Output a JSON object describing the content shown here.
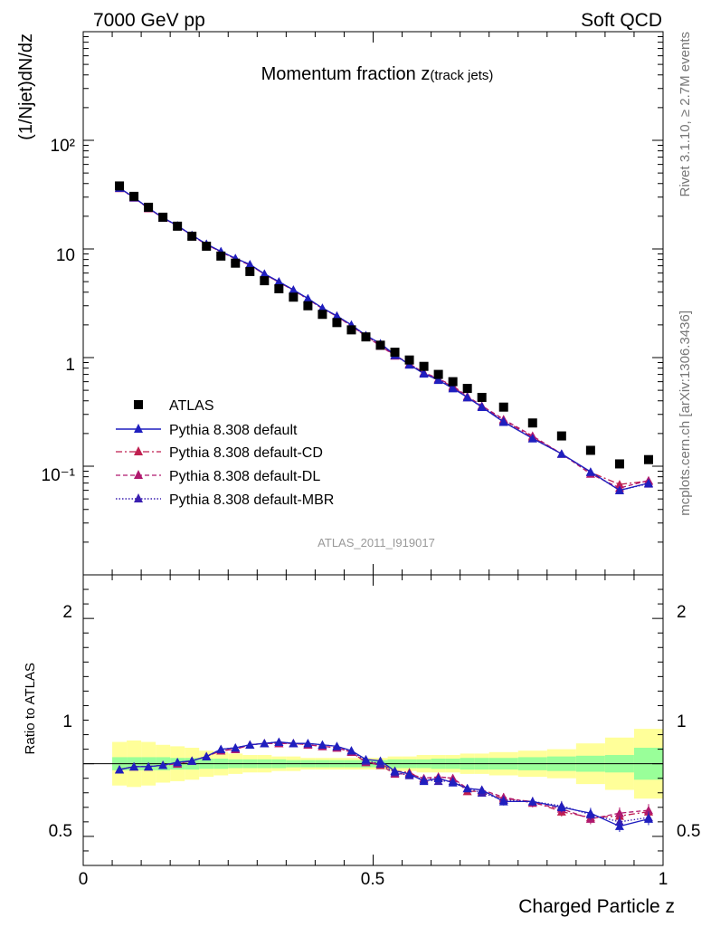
{
  "header": {
    "left": "7000 GeV pp",
    "right": "Soft QCD"
  },
  "side_labels": {
    "rivet": "Rivet 3.1.10, ≥ 2.7M events",
    "mcplots": "mcplots.cern.ch [arXiv:1306.3436]"
  },
  "analysis_tag": "ATLAS_2011_I919017",
  "colors": {
    "atlas": "#000000",
    "default": "#1f1fbf",
    "cd": "#bf1f4f",
    "dl": "#b0186e",
    "mbr": "#3a1fb0",
    "band_inner": "#99ff99",
    "band_outer": "#ffff99"
  },
  "chart_data": {
    "type": "scatter",
    "title_main": "Momentum fraction ",
    "title_var": "z",
    "title_sub": "(track jets)",
    "xlabel": "Charged Particle z",
    "ylabel": "(1/Njet)dN/dz",
    "ratio_ylabel": "Ratio to ATLAS",
    "xlim": [
      0,
      1
    ],
    "ylim": [
      0.01,
      1000
    ],
    "yscale": "log",
    "ratio_ylim": [
      0.3,
      2.3
    ],
    "x_ticks": [
      "0",
      "0.5",
      "1"
    ],
    "y_ticks": [
      "10⁻¹",
      "1",
      "10",
      "10²"
    ],
    "ratio_ticks": [
      "0.5",
      "1",
      "2"
    ],
    "x": [
      0.0625,
      0.0875,
      0.1125,
      0.1375,
      0.1625,
      0.1875,
      0.2125,
      0.2375,
      0.2625,
      0.2875,
      0.3125,
      0.3375,
      0.3625,
      0.3875,
      0.4125,
      0.4375,
      0.4625,
      0.4875,
      0.5125,
      0.5375,
      0.5625,
      0.5875,
      0.6125,
      0.6375,
      0.6625,
      0.6875,
      0.725,
      0.775,
      0.825,
      0.875,
      0.925,
      0.975
    ],
    "x_err": [
      0.0125,
      0.0125,
      0.0125,
      0.0125,
      0.0125,
      0.0125,
      0.0125,
      0.0125,
      0.0125,
      0.0125,
      0.0125,
      0.0125,
      0.0125,
      0.0125,
      0.0125,
      0.0125,
      0.0125,
      0.0125,
      0.0125,
      0.0125,
      0.0125,
      0.0125,
      0.0125,
      0.0125,
      0.0125,
      0.0125,
      0.025,
      0.025,
      0.025,
      0.025,
      0.025,
      0.025
    ],
    "band_inner": [
      0.045,
      0.045,
      0.045,
      0.045,
      0.04,
      0.04,
      0.035,
      0.035,
      0.03,
      0.03,
      0.03,
      0.03,
      0.025,
      0.025,
      0.025,
      0.025,
      0.025,
      0.025,
      0.025,
      0.03,
      0.03,
      0.03,
      0.035,
      0.035,
      0.04,
      0.04,
      0.04,
      0.045,
      0.05,
      0.055,
      0.06,
      0.11
    ],
    "band_outer": [
      0.15,
      0.16,
      0.15,
      0.13,
      0.12,
      0.11,
      0.09,
      0.08,
      0.07,
      0.06,
      0.06,
      0.05,
      0.05,
      0.04,
      0.04,
      0.04,
      0.04,
      0.04,
      0.04,
      0.05,
      0.05,
      0.06,
      0.06,
      0.06,
      0.07,
      0.07,
      0.08,
      0.09,
      0.1,
      0.14,
      0.18,
      0.24
    ],
    "series": [
      {
        "name": "ATLAS",
        "values": [
          38,
          30.5,
          24.2,
          19.6,
          16.2,
          13.1,
          10.6,
          8.6,
          7.4,
          6.2,
          5.1,
          4.3,
          3.6,
          3.0,
          2.5,
          2.1,
          1.8,
          1.55,
          1.3,
          1.12,
          0.95,
          0.83,
          0.7,
          0.6,
          0.52,
          0.43,
          0.35,
          0.25,
          0.19,
          0.14,
          0.105,
          0.115
        ]
      },
      {
        "name": "Pythia 8.308 default",
        "style": "solid",
        "values": [
          36.5,
          29.8,
          23.8,
          19.4,
          16.4,
          13.4,
          11.1,
          9.5,
          8.2,
          7.2,
          5.9,
          5.0,
          4.2,
          3.5,
          2.86,
          2.42,
          2.0,
          1.6,
          1.35,
          1.06,
          0.86,
          0.71,
          0.62,
          0.52,
          0.43,
          0.35,
          0.255,
          0.18,
          0.13,
          0.089,
          0.06,
          0.07
        ],
        "ratio": [
          0.96,
          0.98,
          0.98,
          0.99,
          1.01,
          1.02,
          1.05,
          1.1,
          1.11,
          1.13,
          1.14,
          1.15,
          1.14,
          1.14,
          1.13,
          1.12,
          1.09,
          1.03,
          1.02,
          0.95,
          0.93,
          0.88,
          0.9,
          0.87,
          0.83,
          0.82,
          0.74,
          0.74,
          0.7,
          0.66,
          0.57,
          0.62
        ]
      },
      {
        "name": "Pythia 8.308 default-CD",
        "style": "dashdot",
        "values": [
          36.2,
          29.6,
          23.6,
          19.3,
          16.3,
          13.3,
          11.0,
          9.4,
          8.15,
          7.15,
          5.85,
          4.95,
          4.15,
          3.45,
          2.83,
          2.4,
          1.95,
          1.58,
          1.3,
          1.05,
          0.88,
          0.72,
          0.63,
          0.54,
          0.43,
          0.35,
          0.265,
          0.185,
          0.13,
          0.088,
          0.068,
          0.073
        ],
        "ratio": [
          0.96,
          0.98,
          0.98,
          0.99,
          1.0,
          1.02,
          1.05,
          1.09,
          1.1,
          1.13,
          1.14,
          1.14,
          1.14,
          1.13,
          1.12,
          1.11,
          1.08,
          1.01,
          1.0,
          0.95,
          0.94,
          0.89,
          0.91,
          0.9,
          0.81,
          0.81,
          0.76,
          0.74,
          0.67,
          0.63,
          0.64,
          0.67
        ]
      },
      {
        "name": "Pythia 8.308 default-DL",
        "style": "dashed",
        "values": [
          36.3,
          29.7,
          23.7,
          19.3,
          16.3,
          13.3,
          11.0,
          9.4,
          8.1,
          7.1,
          5.85,
          4.95,
          4.2,
          3.45,
          2.83,
          2.42,
          1.97,
          1.57,
          1.28,
          1.04,
          0.87,
          0.73,
          0.64,
          0.55,
          0.44,
          0.36,
          0.27,
          0.19,
          0.13,
          0.085,
          0.063,
          0.074
        ],
        "ratio": [
          0.96,
          0.98,
          0.98,
          0.99,
          1.0,
          1.02,
          1.05,
          1.09,
          1.1,
          1.13,
          1.14,
          1.14,
          1.14,
          1.13,
          1.12,
          1.11,
          1.08,
          1.01,
          0.99,
          0.93,
          0.93,
          0.9,
          0.91,
          0.9,
          0.83,
          0.82,
          0.77,
          0.73,
          0.69,
          0.62,
          0.66,
          0.68
        ]
      },
      {
        "name": "Pythia 8.308 default-MBR",
        "style": "dotted",
        "values": [
          36.4,
          29.7,
          23.8,
          19.4,
          16.4,
          13.4,
          11.1,
          9.45,
          8.2,
          7.2,
          5.9,
          5.0,
          4.2,
          3.5,
          2.85,
          2.42,
          2.0,
          1.6,
          1.33,
          1.05,
          0.86,
          0.72,
          0.63,
          0.53,
          0.43,
          0.355,
          0.26,
          0.18,
          0.13,
          0.088,
          0.06,
          0.069
        ],
        "ratio": [
          0.96,
          0.98,
          0.98,
          0.99,
          1.01,
          1.02,
          1.05,
          1.1,
          1.11,
          1.13,
          1.14,
          1.15,
          1.14,
          1.14,
          1.13,
          1.12,
          1.09,
          1.02,
          1.0,
          0.94,
          0.92,
          0.89,
          0.88,
          0.88,
          0.83,
          0.8,
          0.75,
          0.74,
          0.71,
          0.65,
          0.6,
          0.63
        ]
      }
    ]
  }
}
